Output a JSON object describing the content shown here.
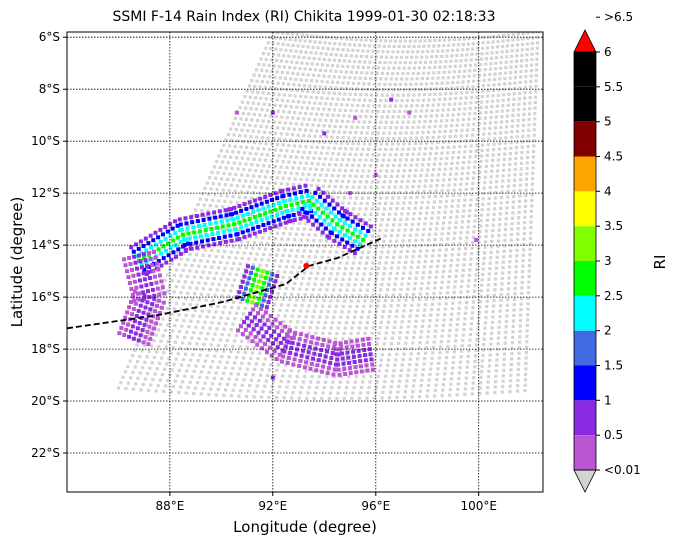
{
  "chart_data": {
    "type": "heatmap",
    "title": "SSMI F-14 Rain Index (RI) Chikita 1999-01-30 02:18:33",
    "xlabel": "Longitude (degree)",
    "ylabel": "Latitude (degree)",
    "xlim": [
      84.0,
      102.5
    ],
    "ylim": [
      -23.5,
      -5.8
    ],
    "x_ticks": [
      {
        "value": 88,
        "label": "88°E"
      },
      {
        "value": 92,
        "label": "92°E"
      },
      {
        "value": 96,
        "label": "96°E"
      },
      {
        "value": 100,
        "label": "100°E"
      }
    ],
    "y_ticks": [
      {
        "value": -6,
        "label": "6°S"
      },
      {
        "value": -8,
        "label": "8°S"
      },
      {
        "value": -10,
        "label": "10°S"
      },
      {
        "value": -12,
        "label": "12°S"
      },
      {
        "value": -14,
        "label": "14°S"
      },
      {
        "value": -16,
        "label": "16°S"
      },
      {
        "value": -18,
        "label": "18°S"
      },
      {
        "value": -20,
        "label": "20°S"
      },
      {
        "value": -22,
        "label": "22°S"
      }
    ],
    "grid": true,
    "colorbar": {
      "label": "RI",
      "levels": [
        {
          "label": "<0.01",
          "color": "#d3d3d3"
        },
        {
          "label": "0.5",
          "color": "#ba55d3"
        },
        {
          "label": "1",
          "color": "#8a2be2"
        },
        {
          "label": "1.5",
          "color": "#0000ff"
        },
        {
          "label": "2",
          "color": "#4169e1"
        },
        {
          "label": "2.5",
          "color": "#00ffff"
        },
        {
          "label": "3",
          "color": "#00ff00"
        },
        {
          "label": "3.5",
          "color": "#7fff00"
        },
        {
          "label": "4",
          "color": "#ffff00"
        },
        {
          "label": "4.5",
          "color": "#ffa500"
        },
        {
          "label": "5",
          "color": "#800000"
        },
        {
          "label": "5.5",
          "color": "#000000"
        },
        {
          "label": "6",
          "color": "#000000"
        },
        {
          "label": ">6.5",
          "color": "#ff0000"
        }
      ]
    },
    "swath_corners": [
      [
        92.0,
        -5.8
      ],
      [
        102.3,
        -5.8
      ],
      [
        101.8,
        -19.6
      ],
      [
        86.0,
        -19.5
      ]
    ],
    "swath_grid_color": "#d3d3d3",
    "rain_features": [
      {
        "name": "northern band",
        "path": [
          [
            86.8,
            -14.6
          ],
          [
            88.5,
            -13.6
          ],
          [
            90.5,
            -13.2
          ],
          [
            92.5,
            -12.5
          ],
          [
            93.4,
            -12.3
          ],
          [
            94.5,
            -13.2
          ],
          [
            95.5,
            -13.8
          ]
        ],
        "core_ri": 3.0
      },
      {
        "name": "western arc",
        "path": [
          [
            86.8,
            -14.4
          ],
          [
            87.2,
            -16.0
          ],
          [
            86.6,
            -17.6
          ]
        ],
        "core_ri": 1.0
      },
      {
        "name": "central core",
        "path": [
          [
            91.6,
            -15.0
          ],
          [
            91.2,
            -16.2
          ]
        ],
        "core_ri": 3.5
      },
      {
        "name": "southern arc",
        "path": [
          [
            91.0,
            -16.8
          ],
          [
            92.5,
            -17.9
          ],
          [
            94.5,
            -18.4
          ],
          [
            95.8,
            -18.2
          ]
        ],
        "core_ri": 1.0
      }
    ],
    "scattered_pixels": [
      {
        "lon": 90.6,
        "lat": -8.9,
        "ri": 0.5
      },
      {
        "lon": 92.0,
        "lat": -8.9,
        "ri": 1.0
      },
      {
        "lon": 96.6,
        "lat": -8.4,
        "ri": 1.0
      },
      {
        "lon": 97.3,
        "lat": -8.9,
        "ri": 0.5
      },
      {
        "lon": 94.0,
        "lat": -9.7,
        "ri": 1.0
      },
      {
        "lon": 95.2,
        "lat": -9.1,
        "ri": 0.5
      },
      {
        "lon": 96.0,
        "lat": -11.3,
        "ri": 0.5
      },
      {
        "lon": 95.0,
        "lat": -12.0,
        "ri": 0.5
      },
      {
        "lon": 99.9,
        "lat": -13.8,
        "ri": 0.5
      },
      {
        "lon": 92.0,
        "lat": -19.1,
        "ri": 1.0
      }
    ],
    "track": [
      [
        84.0,
        -17.2
      ],
      [
        87.5,
        -16.7
      ],
      [
        90.0,
        -16.2
      ],
      [
        92.5,
        -15.5
      ],
      [
        93.4,
        -14.8
      ],
      [
        94.5,
        -14.5
      ],
      [
        96.3,
        -13.7
      ]
    ],
    "storm_center": {
      "lon": 93.3,
      "lat": -14.8
    }
  }
}
